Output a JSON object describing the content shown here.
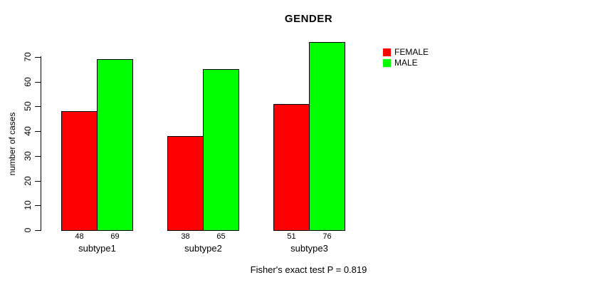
{
  "title": "GENDER",
  "caption": "Fisher's exact test P = 0.819",
  "colors": {
    "female": "#ff0000",
    "male": "#00ff00",
    "axis": "#000000",
    "background": "#ffffff"
  },
  "chart_data": {
    "type": "bar",
    "title": "GENDER",
    "xlabel": "",
    "ylabel": "number of cases",
    "categories": [
      "subtype1",
      "subtype2",
      "subtype3"
    ],
    "series": [
      {
        "name": "FEMALE",
        "color": "#ff0000",
        "values": [
          48,
          38,
          51
        ]
      },
      {
        "name": "MALE",
        "color": "#00ff00",
        "values": [
          69,
          65,
          76
        ]
      }
    ],
    "bar_value_labels": [
      [
        "48",
        "69"
      ],
      [
        "38",
        "65"
      ],
      [
        "51",
        "76"
      ]
    ],
    "yticks": [
      0,
      10,
      20,
      30,
      40,
      50,
      60,
      70
    ],
    "ylim": [
      0,
      70
    ],
    "grid": false,
    "legend_position": "right",
    "legend_entries": [
      "FEMALE",
      "MALE"
    ],
    "annotation": "Fisher's exact test P = 0.819"
  }
}
